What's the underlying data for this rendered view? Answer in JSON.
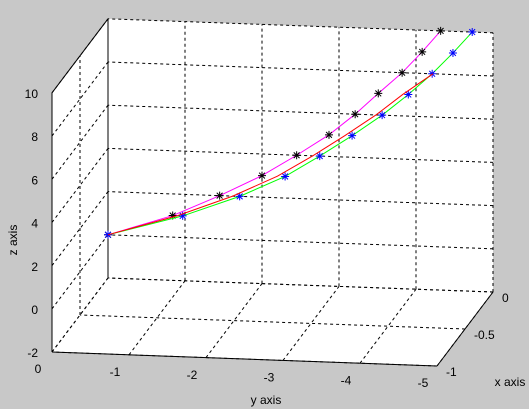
{
  "chart_data": {
    "type": "line3d",
    "xlabel": "x axis",
    "ylabel": "y axis",
    "zlabel": "z axis",
    "xlim": [
      -1,
      0
    ],
    "ylim": [
      -5,
      0
    ],
    "zlim": [
      -2,
      10
    ],
    "xticks": [
      0,
      -0.5,
      -1
    ],
    "yticks": [
      0,
      -1,
      -2,
      -3,
      -4,
      -5
    ],
    "zticks": [
      -2,
      0,
      2,
      4,
      6,
      8,
      10
    ],
    "grid": true,
    "series": [
      {
        "line_color": "#ff00ff",
        "marker": "*",
        "marker_color": "#000000",
        "x": [
          0,
          0,
          0,
          0,
          0,
          0,
          0,
          0,
          0,
          0,
          0
        ],
        "y": [
          0,
          -0.84,
          -1.45,
          -2.0,
          -2.45,
          -2.87,
          -3.21,
          -3.51,
          -3.82,
          -4.08,
          -4.32
        ],
        "z": [
          0,
          1,
          2,
          3,
          4,
          5,
          6,
          7,
          8,
          9,
          10
        ]
      },
      {
        "line_color": "#00ff00",
        "marker": "*",
        "marker_color": "#0000ff",
        "x": [
          0,
          0,
          0,
          0,
          0,
          0,
          0,
          0,
          0,
          0,
          0
        ],
        "y": [
          0,
          -0.97,
          -1.71,
          -2.3,
          -2.75,
          -3.17,
          -3.56,
          -3.9,
          -4.21,
          -4.48,
          -4.73
        ],
        "z": [
          0,
          1,
          2,
          3,
          4,
          5,
          6,
          7,
          8,
          9,
          10
        ]
      },
      {
        "line_color": "#ff0000",
        "x": [
          0,
          0,
          0,
          0,
          0,
          0,
          0,
          0,
          0
        ],
        "y": [
          0,
          -0.9,
          -1.62,
          -2.2,
          -2.66,
          -3.08,
          -3.48,
          -3.83,
          -4.22
        ],
        "z": [
          0,
          1,
          2,
          3,
          4,
          5,
          6,
          7,
          8
        ]
      }
    ]
  }
}
